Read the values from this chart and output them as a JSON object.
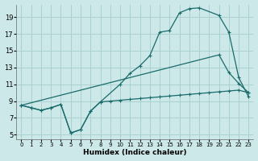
{
  "xlabel": "Humidex (Indice chaleur)",
  "bg_color": "#cce8e8",
  "grid_color": "#aad0d0",
  "line_color": "#1a6b6b",
  "xlim": [
    -0.5,
    23.5
  ],
  "ylim": [
    4.5,
    20.5
  ],
  "xticks": [
    0,
    1,
    2,
    3,
    4,
    5,
    6,
    7,
    8,
    9,
    10,
    11,
    12,
    13,
    14,
    15,
    16,
    17,
    18,
    19,
    20,
    21,
    22,
    23
  ],
  "yticks": [
    5,
    7,
    9,
    11,
    13,
    15,
    17,
    19
  ],
  "line2_x": [
    0,
    1,
    2,
    3,
    4,
    5,
    6,
    7,
    8,
    10,
    11,
    12,
    13,
    14,
    15,
    16,
    17,
    18,
    20,
    21,
    22,
    23
  ],
  "line2_y": [
    8.5,
    8.2,
    7.9,
    8.2,
    8.6,
    5.2,
    5.6,
    7.8,
    8.9,
    11.0,
    12.3,
    13.2,
    14.4,
    17.2,
    17.4,
    19.5,
    20.0,
    20.1,
    19.2,
    17.2,
    11.8,
    9.5
  ],
  "line1_x": [
    0,
    1,
    2,
    3,
    4,
    5,
    6,
    7,
    8,
    9,
    10,
    11,
    12,
    13,
    14,
    15,
    16,
    17,
    18,
    19,
    20,
    21,
    22,
    23
  ],
  "line1_y": [
    8.5,
    8.2,
    7.9,
    8.2,
    8.6,
    5.2,
    5.6,
    7.8,
    8.9,
    9.0,
    9.1,
    9.2,
    9.3,
    9.4,
    9.5,
    9.6,
    9.7,
    9.8,
    9.9,
    10.0,
    10.1,
    10.2,
    10.3,
    10.0
  ],
  "line3_x": [
    0,
    20,
    21,
    22,
    23
  ],
  "line3_y": [
    8.5,
    14.5,
    12.4,
    11.1,
    10.0
  ]
}
